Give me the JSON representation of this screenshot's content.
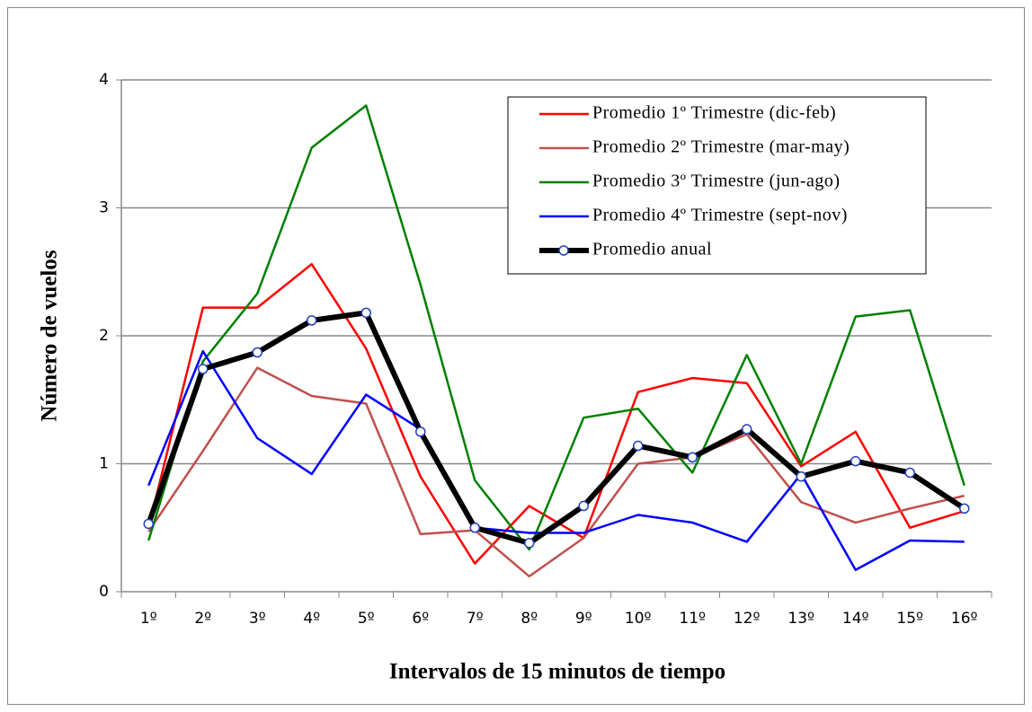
{
  "chart_data": {
    "type": "line",
    "xlabel": "Intervalos de 15 minutos de tiempo",
    "ylabel": "Número de vuelos",
    "categories": [
      "1º",
      "2º",
      "3º",
      "4º",
      "5º",
      "6º",
      "7º",
      "8º",
      "9º",
      "10º",
      "11º",
      "12º",
      "13º",
      "14º",
      "15º",
      "16º"
    ],
    "series": [
      {
        "name": "Promedio 1º Trimestre (dic-feb)",
        "color": "#ff0000",
        "values": [
          0.5,
          2.22,
          2.22,
          2.56,
          1.9,
          0.9,
          0.22,
          0.67,
          0.42,
          1.56,
          1.67,
          1.63,
          0.98,
          1.25,
          0.5,
          0.63
        ]
      },
      {
        "name": "Promedio 2º Trimestre (mar-may)",
        "color": "#c0504d",
        "values": [
          0.47,
          1.1,
          1.75,
          1.53,
          1.47,
          0.45,
          0.48,
          0.12,
          0.42,
          1.0,
          1.05,
          1.23,
          0.7,
          0.54,
          0.65,
          0.75
        ]
      },
      {
        "name": "Promedio 3º Trimestre (jun-ago)",
        "color": "#008000",
        "values": [
          0.4,
          1.8,
          2.33,
          3.47,
          3.8,
          2.4,
          0.87,
          0.33,
          1.36,
          1.43,
          0.93,
          1.85,
          1.0,
          2.15,
          2.2,
          0.83
        ]
      },
      {
        "name": "Promedio 4º Trimestre (sept-nov)",
        "color": "#0000ff",
        "values": [
          0.83,
          1.88,
          1.2,
          0.92,
          1.54,
          1.27,
          0.5,
          0.46,
          0.46,
          0.6,
          0.54,
          0.39,
          0.92,
          0.17,
          0.4,
          0.39
        ]
      },
      {
        "name": "Promedio anual",
        "color": "#000000",
        "linewidth": 6,
        "marker": "circle",
        "values": [
          0.53,
          1.74,
          1.87,
          2.12,
          2.18,
          1.25,
          0.5,
          0.38,
          0.67,
          1.14,
          1.05,
          1.27,
          0.9,
          1.02,
          0.93,
          0.65
        ]
      }
    ],
    "ylim": [
      0,
      4
    ],
    "yticks": [
      0,
      1,
      2,
      3,
      4
    ],
    "grid": true,
    "legend": "upper right"
  }
}
